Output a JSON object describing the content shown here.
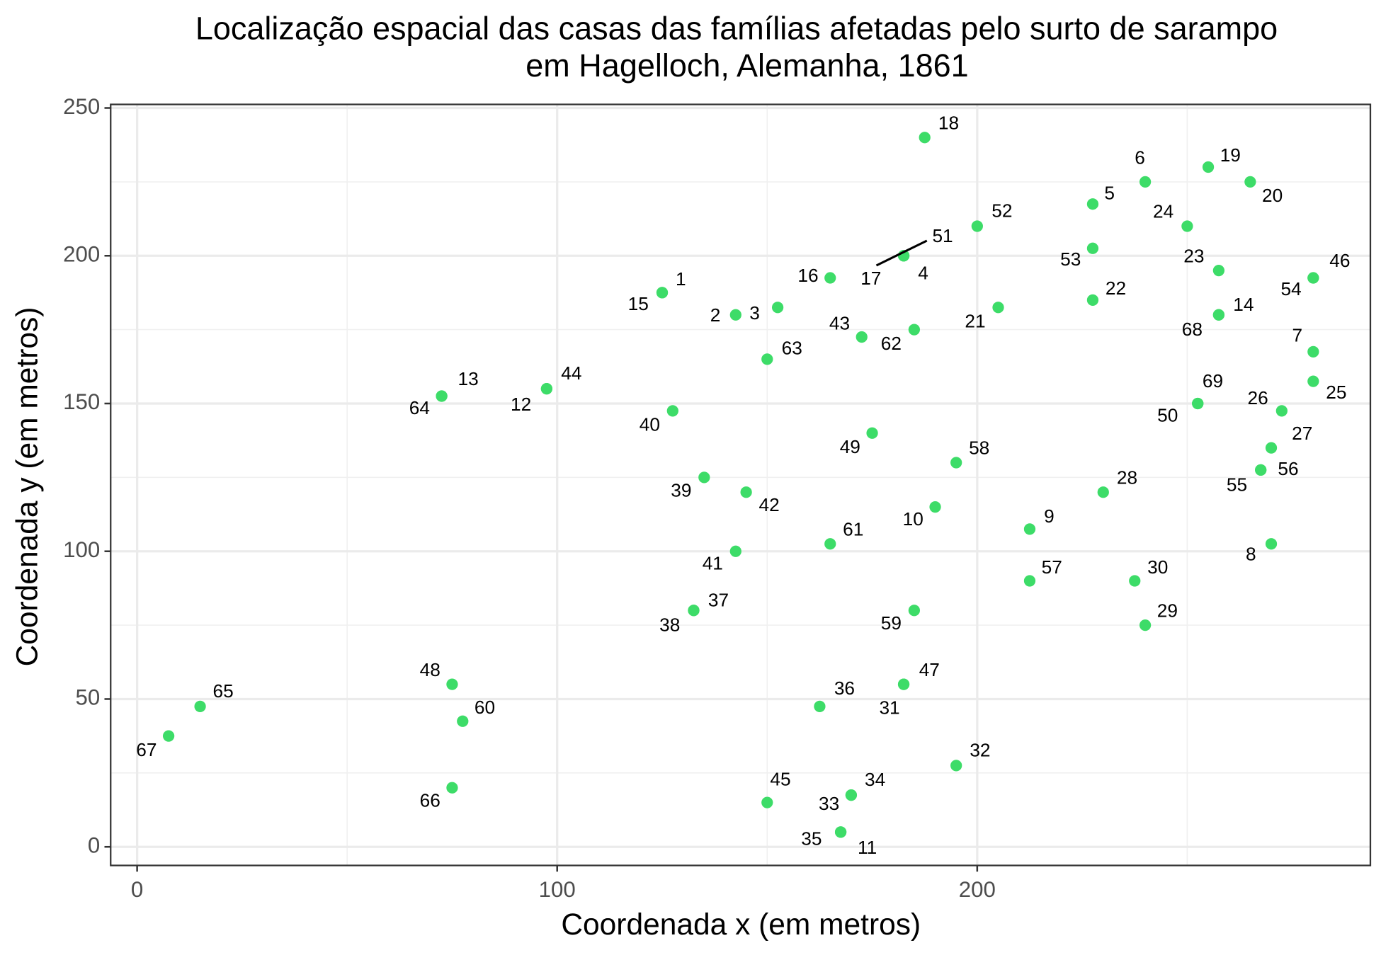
{
  "chart_data": {
    "type": "scatter",
    "title": [
      "Localização espacial das casas das famílias afetadas pelo surto de sarampo",
      "em Hagelloch, Alemanha, 1861"
    ],
    "x_label": "Coordenada x (em metros)",
    "y_label": "Coordenada y (em metros)",
    "x": [
      125,
      142.5,
      152.5,
      182.5,
      227.5,
      240,
      280,
      270,
      212.5,
      190,
      167.5,
      97.5,
      72.5,
      257.5,
      125,
      165,
      182.5,
      187.5,
      255,
      265,
      205,
      227.5,
      257.5,
      250,
      280,
      272.5,
      270,
      230,
      240,
      237.5,
      182.5,
      195,
      170,
      170,
      167.5,
      162.5,
      132.5,
      132.5,
      135,
      127.5,
      142.5,
      145,
      172.5,
      97.5,
      150,
      280,
      182.5,
      75,
      175,
      252.5,
      182.5,
      200,
      227.5,
      280,
      267.5,
      267.5,
      212.5,
      195,
      185,
      77.5,
      165,
      185,
      150,
      72.5,
      15,
      75,
      7.5,
      257.5,
      252.5
    ],
    "y": [
      187.5,
      180,
      182.5,
      200,
      217.5,
      225,
      167.5,
      102.5,
      107.5,
      115,
      5,
      155,
      152.5,
      180,
      187.5,
      192.5,
      200,
      240,
      230,
      225,
      182.5,
      185,
      195,
      210,
      157.5,
      147.5,
      135,
      120,
      75,
      90,
      55,
      27.5,
      17.5,
      17.5,
      5,
      47.5,
      80,
      80,
      125,
      147.5,
      100,
      120,
      172.5,
      155,
      15,
      192.5,
      55,
      55,
      140,
      150,
      200,
      210,
      202.5,
      192.5,
      127.5,
      127.5,
      90,
      130,
      80,
      42.5,
      102.5,
      175,
      165,
      152.5,
      47.5,
      20,
      37.5,
      180,
      150
    ],
    "labels": [
      "1",
      "2",
      "3",
      "4",
      "5",
      "6",
      "7",
      "8",
      "9",
      "10",
      "11",
      "12",
      "13",
      "14",
      "15",
      "16",
      "17",
      "18",
      "19",
      "20",
      "21",
      "22",
      "23",
      "24",
      "25",
      "26",
      "27",
      "28",
      "29",
      "30",
      "31",
      "32",
      "33",
      "34",
      "35",
      "36",
      "37",
      "38",
      "39",
      "40",
      "41",
      "42",
      "43",
      "44",
      "45",
      "46",
      "47",
      "48",
      "49",
      "50",
      "51",
      "52",
      "53",
      "54",
      "55",
      "56",
      "57",
      "58",
      "59",
      "60",
      "61",
      "62",
      "63",
      "64",
      "65",
      "66",
      "67",
      "68",
      "69"
    ],
    "color": "#3ddc68",
    "xlim": [
      -6.3,
      293.6
    ],
    "ylim": [
      -6.3,
      251.2
    ],
    "xticks": [
      0,
      100,
      200
    ],
    "yticks": [
      0,
      50,
      100,
      150,
      200,
      250
    ],
    "grid": true
  }
}
